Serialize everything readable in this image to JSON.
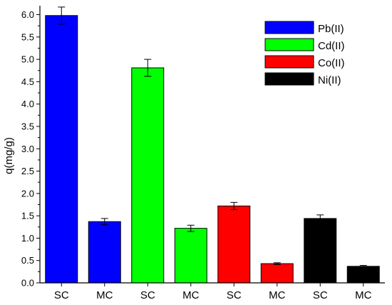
{
  "chart_data": {
    "type": "bar",
    "title": "",
    "xlabel": "",
    "ylabel": "q(mg/g)",
    "ylim": [
      0,
      6.2
    ],
    "y_ticks": [
      0.0,
      0.5,
      1.0,
      1.5,
      2.0,
      2.5,
      3.0,
      3.5,
      4.0,
      4.5,
      5.0,
      5.5,
      6.0
    ],
    "y_tick_labels": [
      "0.0",
      "0.5",
      "1.0",
      "1.5",
      "2.0",
      "2.5",
      "3.0",
      "3.5",
      "4.0",
      "4.5",
      "5.0",
      "5.5",
      "6.0"
    ],
    "categories": [
      "SC",
      "MC",
      "SC",
      "MC",
      "SC",
      "MC",
      "SC",
      "MC"
    ],
    "values": [
      5.98,
      1.37,
      4.81,
      1.22,
      1.72,
      0.43,
      1.44,
      0.37
    ],
    "errors": [
      0.19,
      0.07,
      0.19,
      0.07,
      0.08,
      0.02,
      0.08,
      0.02
    ],
    "bar_series_index": [
      0,
      0,
      1,
      1,
      2,
      2,
      3,
      3
    ],
    "series": [
      {
        "name": "Pb(II)",
        "color": "#0000ff"
      },
      {
        "name": "Cd(II)",
        "color": "#00ff00"
      },
      {
        "name": "Co(II)",
        "color": "#ff0000"
      },
      {
        "name": "Ni(II)",
        "color": "#000000"
      }
    ],
    "legend_position": "top-right",
    "grid": false
  }
}
